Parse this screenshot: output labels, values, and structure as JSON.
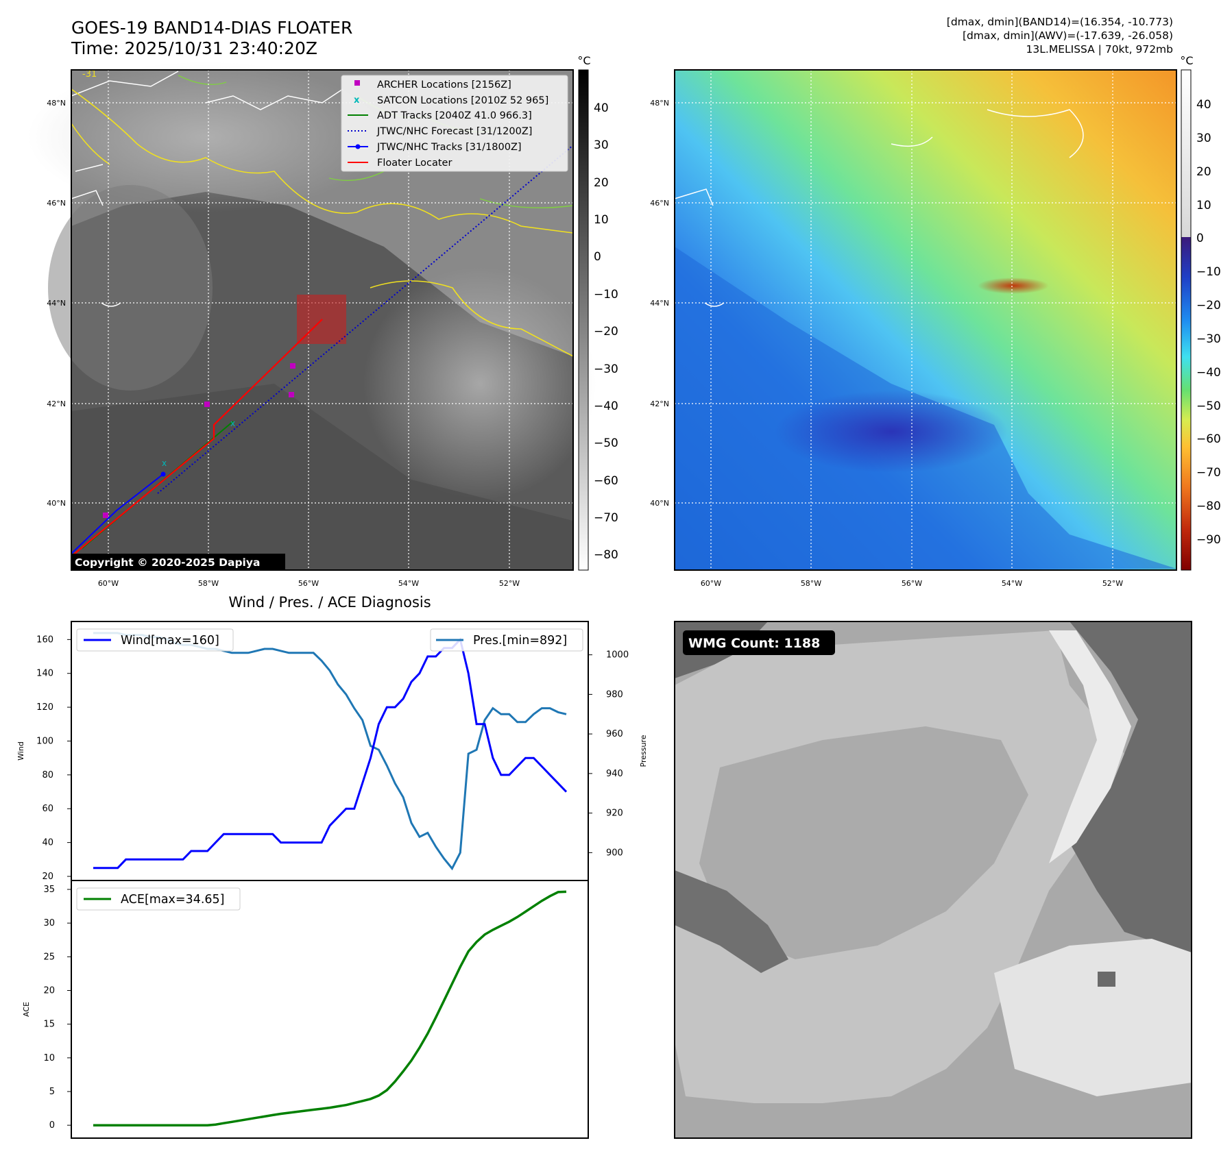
{
  "header": {
    "title_line1": "GOES-19 BAND14-DIAS FLOATER",
    "title_line2": "Time: 2025/10/31 23:40:20Z",
    "info_line1": "[dmax, dmin](BAND14)=(16.354, -10.773)",
    "info_line2": "[dmax, dmin](AWV)=(-17.639, -26.058)",
    "info_line3": "13L.MELISSA | 70kt, 972mb"
  },
  "map": {
    "lat_labels": [
      "48°N",
      "46°N",
      "44°N",
      "42°N",
      "40°N"
    ],
    "lon_labels": [
      "60°W",
      "58°W",
      "56°W",
      "54°W",
      "52°W"
    ],
    "copyright": "Copyright © 2020-2025 Dapiya",
    "contour_label": "-31",
    "legend": [
      {
        "label": "ARCHER Locations [2156Z]",
        "color": "#c000c0",
        "marker": "square"
      },
      {
        "label": "SATCON Locations [2010Z 52 965]",
        "color": "#00b8b8",
        "marker": "x"
      },
      {
        "label": "ADT Tracks [2040Z 41.0 966.3]",
        "color": "#008000",
        "marker": "line"
      },
      {
        "label": "JTWC/NHC Forecast [31/1200Z]",
        "color": "#0000cc",
        "marker": "dotted"
      },
      {
        "label": "JTWC/NHC Tracks [31/1800Z]",
        "color": "#0000ff",
        "marker": "line-dot"
      },
      {
        "label": "Floater Locater",
        "color": "#ff0000",
        "marker": "line"
      }
    ],
    "left_colorbar": {
      "unit": "°C",
      "ticks": [
        "40",
        "30",
        "20",
        "10",
        "0",
        "−10",
        "−20",
        "−30",
        "−40",
        "−50",
        "−60",
        "−70",
        "−80"
      ]
    },
    "right_colorbar": {
      "unit": "°C",
      "ticks": [
        "40",
        "30",
        "20",
        "10",
        "0",
        "−10",
        "−20",
        "−30",
        "−40",
        "−50",
        "−60",
        "−70",
        "−80",
        "−90"
      ]
    }
  },
  "wmg": {
    "badge": "WMG Count: 1188"
  },
  "chart_data": [
    {
      "type": "line",
      "title": "Wind / Pres. / ACE Diagnosis",
      "xlabel": "",
      "ylabel": "Wind",
      "ylabel_right": "Pressure",
      "ylim": [
        20,
        165
      ],
      "ylim_right": [
        888,
        1012
      ],
      "yticks": [
        160,
        140,
        120,
        100,
        80,
        60,
        40,
        20
      ],
      "yticks_right": [
        1000,
        980,
        960,
        940,
        920,
        900
      ],
      "series": [
        {
          "name": "Wind[max=160]",
          "color": "#0000ff",
          "axis": "left",
          "values": [
            25,
            25,
            25,
            25,
            30,
            30,
            30,
            30,
            30,
            30,
            30,
            30,
            35,
            35,
            35,
            40,
            45,
            45,
            45,
            45,
            45,
            45,
            45,
            40,
            40,
            40,
            40,
            40,
            40,
            50,
            55,
            60,
            60,
            75,
            90,
            110,
            120,
            120,
            125,
            135,
            140,
            150,
            150,
            155,
            155,
            160,
            140,
            110,
            110,
            90,
            80,
            80,
            85,
            90,
            90,
            85,
            80,
            75,
            70
          ]
        },
        {
          "name": "Pres.[min=892]",
          "color": "#1f77b4",
          "axis": "right",
          "values": [
            1011,
            1011,
            1011,
            1011,
            1010,
            1010,
            1010,
            1009,
            1009,
            1008,
            1006,
            1005,
            1005,
            1004,
            1003,
            1003,
            1002,
            1001,
            1001,
            1001,
            1002,
            1003,
            1003,
            1002,
            1001,
            1001,
            1001,
            1001,
            997,
            992,
            985,
            980,
            973,
            967,
            954,
            952,
            944,
            935,
            928,
            915,
            908,
            910,
            903,
            897,
            892,
            900,
            950,
            952,
            967,
            973,
            970,
            970,
            966,
            966,
            970,
            973,
            973,
            971,
            970
          ]
        }
      ]
    },
    {
      "type": "line",
      "title": "",
      "xlabel": "",
      "ylabel": "ACE",
      "ylim": [
        -1,
        35
      ],
      "yticks": [
        35,
        30,
        25,
        20,
        15,
        10,
        5,
        0
      ],
      "series": [
        {
          "name": "ACE[max=34.65]",
          "color": "#008000",
          "values": [
            0,
            0,
            0,
            0,
            0,
            0,
            0,
            0,
            0,
            0,
            0,
            0,
            0,
            0,
            0,
            0.1,
            0.3,
            0.5,
            0.7,
            0.9,
            1.1,
            1.3,
            1.5,
            1.7,
            1.85,
            2.0,
            2.15,
            2.3,
            2.45,
            2.6,
            2.8,
            3.0,
            3.3,
            3.6,
            3.9,
            4.4,
            5.2,
            6.5,
            8.0,
            9.6,
            11.5,
            13.6,
            16.0,
            18.5,
            21.0,
            23.5,
            25.8,
            27.2,
            28.3,
            29.0,
            29.6,
            30.2,
            30.9,
            31.7,
            32.5,
            33.3,
            34.0,
            34.6,
            34.65
          ]
        }
      ]
    }
  ]
}
